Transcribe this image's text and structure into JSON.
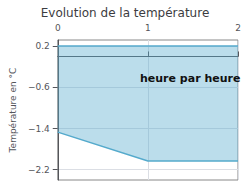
{
  "chart_data": {
    "type": "area",
    "title": "Evolution de la température",
    "ylabel": "Température en °C",
    "annotation": "heure par heure",
    "x": [
      0,
      1,
      2
    ],
    "values": [
      -1.47,
      -2.03,
      -2.03
    ],
    "fill_to": 0.2,
    "color": "#55aacc",
    "xlim": [
      0,
      2
    ],
    "xticks": [
      0,
      1,
      2
    ],
    "ylim": [
      -2.4,
      0.32
    ],
    "yticks": [
      {
        "value": 0.2,
        "label": "0.2"
      },
      {
        "value": -0.6,
        "label": "−0.6"
      },
      {
        "value": -1.4,
        "label": "−1.4"
      },
      {
        "value": -2.2,
        "label": "−2.2"
      }
    ],
    "grid": true
  }
}
